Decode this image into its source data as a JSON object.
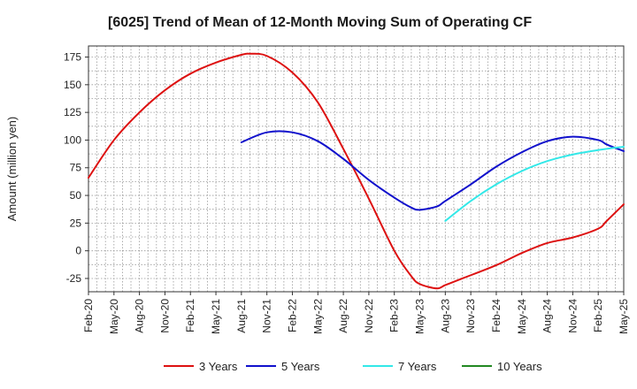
{
  "chart_data": {
    "type": "line",
    "title": "[6025]  Trend of Mean of 12-Month Moving Sum of Operating CF",
    "xlabel": "",
    "ylabel": "Amount (million yen)",
    "ylim": [
      -37,
      185
    ],
    "yticks": [
      175,
      150,
      125,
      100,
      75,
      50,
      25,
      0,
      -25
    ],
    "xlim": [
      0,
      63
    ],
    "x_categories": [
      "Feb-20",
      "May-20",
      "Aug-20",
      "Nov-20",
      "Feb-21",
      "May-21",
      "Aug-21",
      "Nov-21",
      "Feb-22",
      "May-22",
      "Aug-22",
      "Nov-22",
      "Feb-23",
      "May-23",
      "Aug-23",
      "Nov-23",
      "Feb-24",
      "May-24",
      "Aug-24",
      "Nov-24",
      "Feb-25",
      "May-25"
    ],
    "grid": true,
    "legend_position": "bottom",
    "series": [
      {
        "name": "3 Years",
        "color": "#dd1111",
        "x": [
          0,
          3,
          6,
          9,
          12,
          15,
          18,
          19,
          21,
          24,
          27,
          30,
          33,
          36,
          38,
          39,
          41,
          42,
          44,
          48,
          51,
          54,
          57,
          60,
          61,
          63
        ],
        "values": [
          66,
          100,
          125,
          145,
          160,
          170,
          177,
          178,
          176,
          161,
          134,
          92,
          47,
          0,
          -23,
          -30,
          -34,
          -31,
          -25,
          -13,
          -2,
          7,
          12,
          20,
          27,
          42
        ]
      },
      {
        "name": "5 Years",
        "color": "#1111cc",
        "x": [
          18,
          21,
          24,
          27,
          30,
          33,
          36,
          38,
          39,
          41,
          42,
          45,
          48,
          51,
          54,
          57,
          60,
          61,
          63
        ],
        "values": [
          98,
          107,
          107,
          99,
          83,
          64,
          48,
          39,
          37,
          40,
          45,
          60,
          76,
          89,
          99,
          103,
          100,
          96,
          90
        ]
      },
      {
        "name": "7 Years",
        "color": "#33e8e8",
        "x": [
          42,
          45,
          48,
          51,
          54,
          57,
          60,
          63
        ],
        "values": [
          27,
          45,
          60,
          72,
          81,
          87,
          91,
          94
        ]
      },
      {
        "name": "10 Years",
        "color": "#228822",
        "x": [],
        "values": []
      }
    ]
  }
}
